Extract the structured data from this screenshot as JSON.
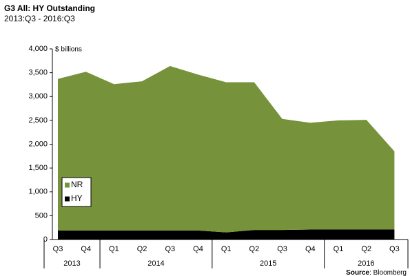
{
  "chart_data": {
    "type": "stacked-area",
    "title": "G3 All: HY Outstanding",
    "subtitle": "2013:Q3 - 2016:Q3",
    "unit_label": "$ billions",
    "source_prefix": "Source",
    "source": ": Bloomberg",
    "categories": [
      "Q3",
      "Q4",
      "Q1",
      "Q2",
      "Q3",
      "Q4",
      "Q1",
      "Q2",
      "Q3",
      "Q4",
      "Q1",
      "Q2",
      "Q3"
    ],
    "groups": [
      "2013",
      "2014",
      "2015",
      "2016"
    ],
    "series": [
      {
        "name": "HY",
        "color": "#000000",
        "values": [
          190,
          190,
          190,
          190,
          190,
          190,
          150,
          200,
          200,
          210,
          210,
          210,
          210
        ]
      },
      {
        "name": "NR",
        "color": "#76933c",
        "values": [
          3180,
          3330,
          3070,
          3130,
          3450,
          3270,
          3150,
          3100,
          2330,
          2240,
          2290,
          2300,
          1640
        ]
      }
    ],
    "ylim": [
      0,
      4000
    ],
    "yticks": [
      0,
      500,
      {
        "value": 1000,
        "label": "1,000"
      },
      {
        "value": 1500,
        "label": "1,500"
      },
      {
        "value": 2000,
        "label": "2,000"
      },
      {
        "value": 2500,
        "label": "2,500"
      },
      {
        "value": 3000,
        "label": "3,000"
      },
      {
        "value": 3500,
        "label": "3,500"
      },
      {
        "value": 4000,
        "label": "4,000"
      }
    ],
    "legend": "lower-left"
  }
}
